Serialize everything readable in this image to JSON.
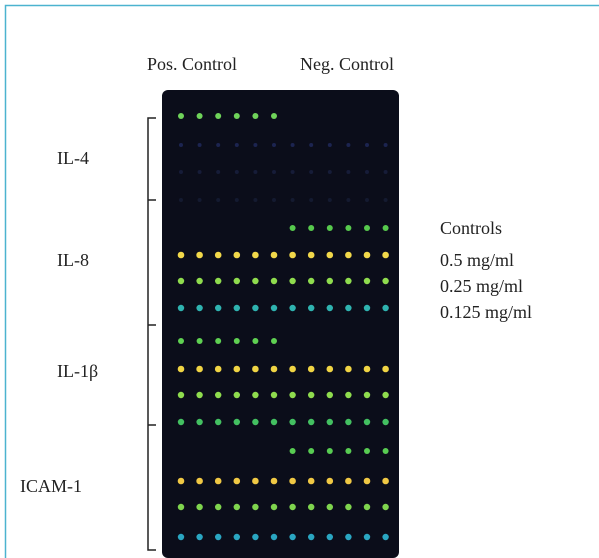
{
  "columns": [
    "Pos. Control",
    "Neg. Control"
  ],
  "rows": [
    "IL-4",
    "IL-8",
    "IL-1β",
    "ICAM-1"
  ],
  "legend": {
    "title": "Controls",
    "items": [
      "0.5 mg/ml",
      "0.25 mg/ml",
      "0.125 mg/ml"
    ]
  }
}
